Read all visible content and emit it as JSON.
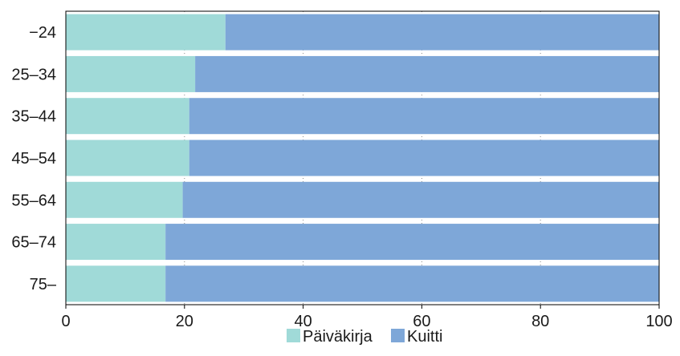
{
  "chart_data": {
    "type": "bar",
    "orientation": "horizontal",
    "stacked": true,
    "categories": [
      "−24",
      "25–34",
      "35–44",
      "45–54",
      "55–64",
      "65–74",
      "75–"
    ],
    "series": [
      {
        "name": "Päiväkirja",
        "color": "#a0dad8",
        "values": [
          26.9,
          21.8,
          20.8,
          20.8,
          19.7,
          16.8,
          16.8
        ]
      },
      {
        "name": "Kuitti",
        "color": "#7ea7d8",
        "values": [
          73.1,
          78.2,
          79.2,
          79.2,
          80.3,
          83.2,
          83.2
        ]
      }
    ],
    "xlim": [
      0,
      100
    ],
    "xticks": [
      "0",
      "20",
      "40",
      "60",
      "80",
      "100"
    ],
    "grid": true,
    "legend_position": "bottom"
  }
}
